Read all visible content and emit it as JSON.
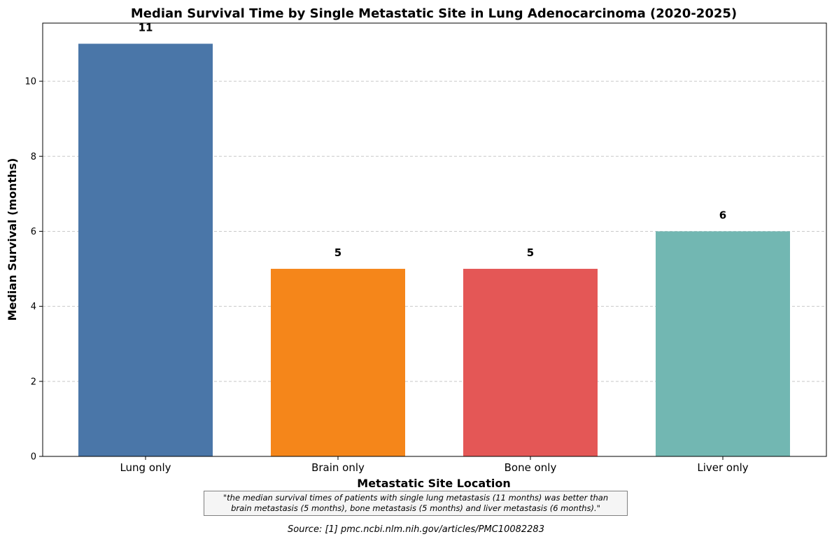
{
  "chart_data": {
    "type": "bar",
    "title": "Median Survival Time by Single Metastatic Site in Lung Adenocarcinoma (2020-2025)",
    "xlabel": "Metastatic Site Location",
    "ylabel": "Median Survival (months)",
    "categories": [
      "Lung only",
      "Brain only",
      "Bone only",
      "Liver only"
    ],
    "values": [
      11,
      5,
      5,
      6
    ],
    "value_labels": [
      "11",
      "5",
      "5",
      "6"
    ],
    "colors": [
      "#4a76a8",
      "#f5861a",
      "#e45756",
      "#72b7b2"
    ],
    "ylim": [
      0,
      11.55
    ],
    "yticks": [
      0,
      2,
      4,
      6,
      8,
      10
    ],
    "ytick_labels": [
      "0",
      "2",
      "4",
      "6",
      "8",
      "10"
    ],
    "grid": "y-dashed"
  },
  "annotation": {
    "quote_line1": "\"the median survival times of patients with single lung metastasis (11 months) was better than",
    "quote_line2": "brain metastasis (5 months), bone metastasis (5 months) and liver metastasis (6 months).\"",
    "source": "Source: [1] pmc.ncbi.nlm.nih.gov/articles/PMC10082283"
  }
}
